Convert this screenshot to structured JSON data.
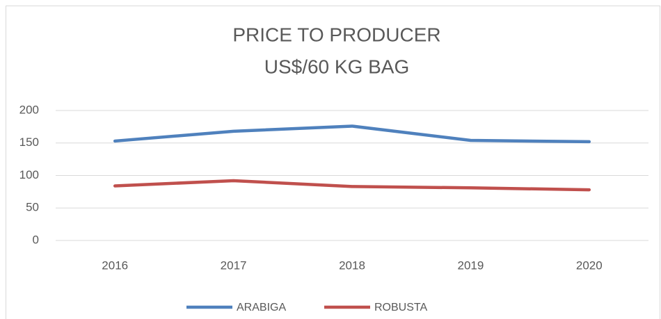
{
  "chart_data": {
    "type": "line",
    "title": "PRICE TO PRODUCER",
    "subtitle": "US$/60 KG BAG",
    "categories": [
      "2016",
      "2017",
      "2018",
      "2019",
      "2020"
    ],
    "series": [
      {
        "name": "ARABIGA",
        "color": "#4f81bd",
        "values": [
          153,
          168,
          176,
          154,
          152
        ]
      },
      {
        "name": "ROBUSTA",
        "color": "#c0504d",
        "values": [
          84,
          92,
          83,
          81,
          78
        ]
      }
    ],
    "ylim": [
      0,
      200
    ],
    "yticks": [
      0,
      50,
      100,
      150,
      200
    ],
    "grid": true,
    "legend": "bottom"
  }
}
